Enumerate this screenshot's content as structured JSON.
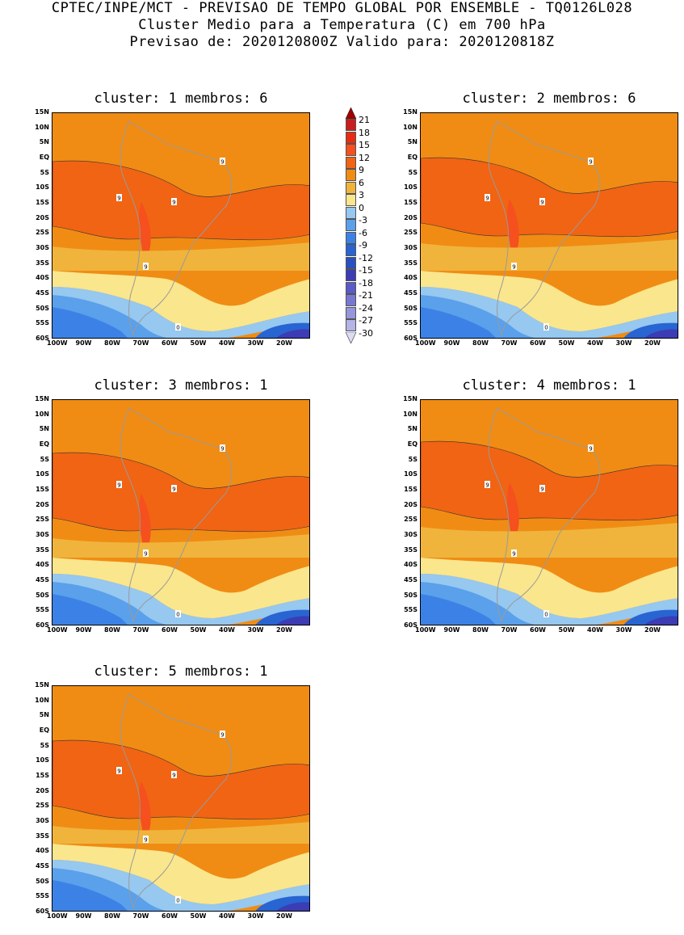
{
  "header": {
    "line1": "CPTEC/INPE/MCT - PREVISAO DE TEMPO GLOBAL POR ENSEMBLE - TQ0126L028",
    "line2": "Cluster Medio para a Temperatura (C) em 700 hPa",
    "line3": "Previsao de: 2020120800Z   Valido para: 2020120818Z"
  },
  "clusters": [
    {
      "title": "cluster: 1   membros: 6"
    },
    {
      "title": "cluster: 2   membros: 6"
    },
    {
      "title": "cluster: 3   membros: 1"
    },
    {
      "title": "cluster: 4   membros: 1"
    },
    {
      "title": "cluster: 5   membros: 1"
    }
  ],
  "axes": {
    "lat_labels": [
      "15N",
      "10N",
      "5N",
      "EQ",
      "5S",
      "10S",
      "15S",
      "20S",
      "25S",
      "30S",
      "35S",
      "40S",
      "45S",
      "50S",
      "55S",
      "60S"
    ],
    "lon_labels": [
      "100W",
      "90W",
      "80W",
      "70W",
      "60W",
      "50W",
      "40W",
      "30W",
      "20W"
    ]
  },
  "legend": {
    "levels": [
      "21",
      "18",
      "15",
      "12",
      "9",
      "6",
      "3",
      "0",
      "-3",
      "-6",
      "-9",
      "-12",
      "-15",
      "-18",
      "-21",
      "-24",
      "-27",
      "-30"
    ],
    "colors": [
      "#a00000",
      "#c81e1e",
      "#e62d14",
      "#f5501e",
      "#f06414",
      "#f08c14",
      "#f0b43c",
      "#fae68c",
      "#96c8f0",
      "#5aa0eb",
      "#3c82e6",
      "#2864d2",
      "#2850be",
      "#3c3cb4",
      "#5a5ac8",
      "#7878d2",
      "#9696dc",
      "#b4b4e6",
      "#dcdcf5"
    ]
  },
  "contour_labels": [
    "9",
    "0"
  ]
}
